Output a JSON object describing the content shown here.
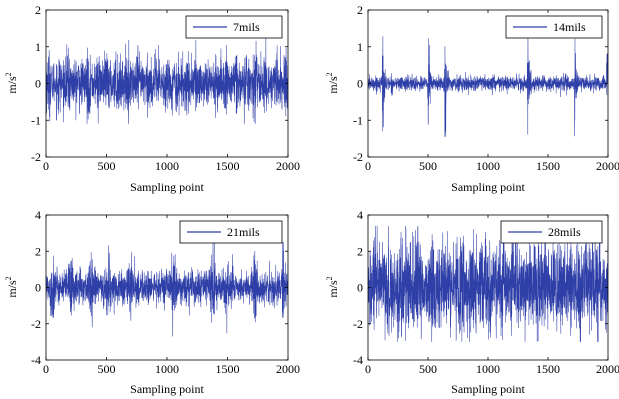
{
  "chart_data": [
    {
      "type": "line",
      "panel": "top-left",
      "series": [
        {
          "name": "7mils"
        }
      ],
      "xlabel": "Sampling point",
      "ylabel": "m/s",
      "ylabel_sup": "2",
      "xlim": [
        0,
        2000
      ],
      "ylim": [
        -2,
        2
      ],
      "xticks": [
        0,
        500,
        1000,
        1500,
        2000
      ],
      "yticks": [
        -2,
        -1,
        0,
        1,
        2
      ],
      "legend": "top-right",
      "signal": {
        "points": 2000,
        "baseline": 0.3,
        "extreme_range": [
          -1.1,
          1.5
        ],
        "pattern": "dense uniform bursts"
      }
    },
    {
      "type": "line",
      "panel": "top-right",
      "series": [
        {
          "name": "14mils"
        }
      ],
      "xlabel": "Sampling point",
      "ylabel": "m/s",
      "ylabel_sup": "2",
      "xlim": [
        0,
        2000
      ],
      "ylim": [
        -2,
        2
      ],
      "xticks": [
        0,
        500,
        1000,
        1500,
        2000
      ],
      "yticks": [
        -2,
        -1,
        0,
        1,
        2
      ],
      "legend": "top-right",
      "signal": {
        "points": 2000,
        "baseline": 0.1,
        "extreme_range": [
          -1.45,
          1.6
        ],
        "impulses_at": [
          120,
          500,
          640,
          1330,
          1720,
          1990
        ]
      }
    },
    {
      "type": "line",
      "panel": "bottom-left",
      "series": [
        {
          "name": "21mils"
        }
      ],
      "xlabel": "Sampling point",
      "ylabel": "m/s",
      "ylabel_sup": "2",
      "xlim": [
        0,
        2000
      ],
      "ylim": [
        -4,
        4
      ],
      "xticks": [
        0,
        500,
        1000,
        1500,
        2000
      ],
      "yticks": [
        -4,
        -2,
        0,
        2,
        4
      ],
      "legend": "top-right",
      "signal": {
        "points": 2000,
        "baseline": 0.45,
        "extreme_range": [
          -2.7,
          2.5
        ],
        "bursts_at": [
          50,
          200,
          380,
          520,
          700,
          1050,
          1380,
          1500,
          1720,
          1960
        ]
      }
    },
    {
      "type": "line",
      "panel": "bottom-right",
      "series": [
        {
          "name": "28mils"
        }
      ],
      "xlabel": "Sampling point",
      "ylabel": "m/s",
      "ylabel_sup": "2",
      "xlim": [
        0,
        2000
      ],
      "ylim": [
        -4,
        4
      ],
      "xticks": [
        0,
        500,
        1000,
        1500,
        2000
      ],
      "yticks": [
        -4,
        -2,
        0,
        2,
        4
      ],
      "legend": "top-right",
      "signal": {
        "points": 2000,
        "baseline": 1.0,
        "extreme_range": [
          -3.0,
          3.4
        ],
        "pattern": "dense high-amplitude noise"
      }
    }
  ],
  "colors": {
    "line": "#2f3fa8",
    "axes": "#000000",
    "background": "#ffffff"
  }
}
